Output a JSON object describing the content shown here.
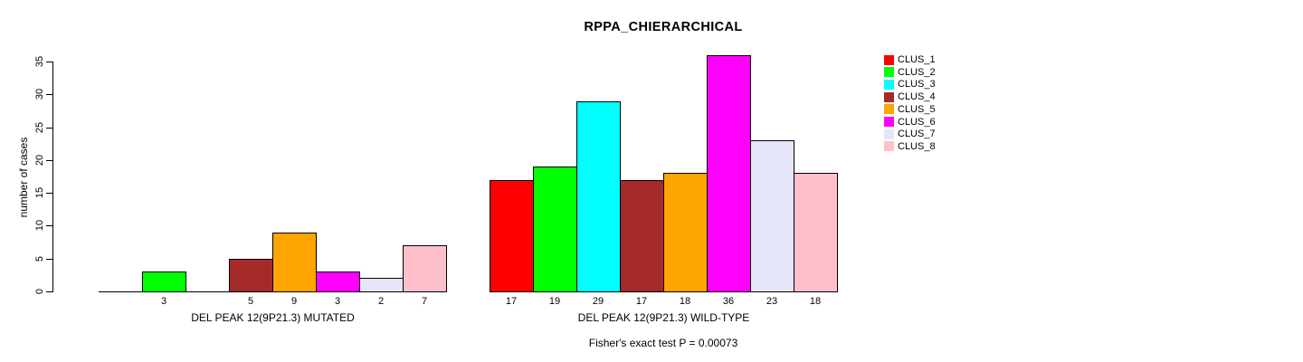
{
  "chart_data": {
    "type": "bar",
    "title": "RPPA_CHIERARCHICAL",
    "ylabel": "number of cases",
    "ylim": [
      0,
      35
    ],
    "yticks": [
      0,
      5,
      10,
      15,
      20,
      25,
      30,
      35
    ],
    "grid": false,
    "legend_position": "right",
    "annotation": "Fisher's exact test P = 0.00073",
    "groups": [
      {
        "label": "DEL PEAK 12(9P21.3) MUTATED",
        "values": [
          0,
          3,
          0,
          5,
          9,
          3,
          2,
          7
        ],
        "bar_labels": [
          "",
          "3",
          "",
          "5",
          "9",
          "3",
          "2",
          "7"
        ]
      },
      {
        "label": "DEL PEAK 12(9P21.3) WILD-TYPE",
        "values": [
          17,
          19,
          29,
          17,
          18,
          36,
          23,
          18
        ],
        "bar_labels": [
          "17",
          "19",
          "29",
          "17",
          "18",
          "36",
          "23",
          "18"
        ]
      }
    ],
    "legend": [
      {
        "label": "CLUS_1",
        "color": "#FF0000"
      },
      {
        "label": "CLUS_2",
        "color": "#00FF00"
      },
      {
        "label": "CLUS_3",
        "color": "#00FFFF"
      },
      {
        "label": "CLUS_4",
        "color": "#A52A2A"
      },
      {
        "label": "CLUS_5",
        "color": "#FFA500"
      },
      {
        "label": "CLUS_6",
        "color": "#FF00FF"
      },
      {
        "label": "CLUS_7",
        "color": "#E6E6FA"
      },
      {
        "label": "CLUS_8",
        "color": "#FFC0CB"
      }
    ]
  }
}
